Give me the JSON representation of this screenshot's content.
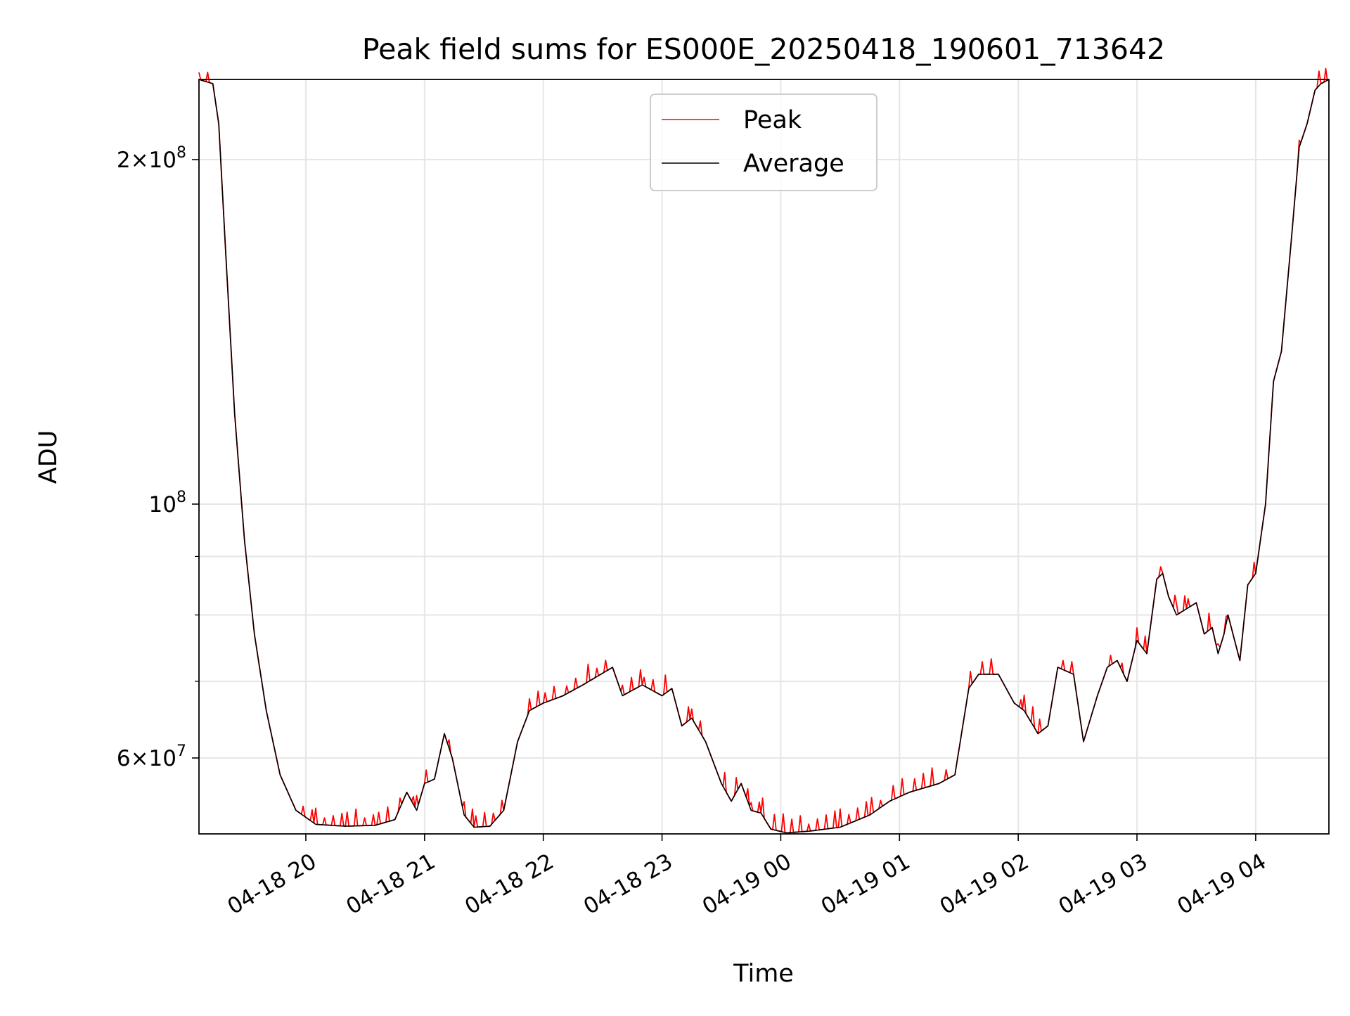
{
  "chart_data": {
    "type": "line",
    "title": "Peak field sums for ES000E_20250418_190601_713642",
    "xlabel": "Time",
    "ylabel": "ADU",
    "yscale": "log",
    "ylim": [
      51500000,
      235000000
    ],
    "xlim": [
      "2025-04-18 19:06",
      "2025-04-19 04:37"
    ],
    "x_ticks": [
      {
        "value": "2025-04-18 20:00",
        "label": "04-18 20"
      },
      {
        "value": "2025-04-18 21:00",
        "label": "04-18 21"
      },
      {
        "value": "2025-04-18 22:00",
        "label": "04-18 22"
      },
      {
        "value": "2025-04-18 23:00",
        "label": "04-18 23"
      },
      {
        "value": "2025-04-19 00:00",
        "label": "04-19 00"
      },
      {
        "value": "2025-04-19 01:00",
        "label": "04-19 01"
      },
      {
        "value": "2025-04-19 02:00",
        "label": "04-19 02"
      },
      {
        "value": "2025-04-19 03:00",
        "label": "04-19 03"
      },
      {
        "value": "2025-04-19 04:00",
        "label": "04-19 04"
      }
    ],
    "y_ticks_major": [
      {
        "value": 60000000,
        "mantissa": "6",
        "exponent": "7"
      },
      {
        "value": 100000000,
        "mantissa": "",
        "exponent": "8"
      },
      {
        "value": 200000000,
        "mantissa": "2",
        "exponent": "8"
      }
    ],
    "y_ticks_minor": [
      70000000,
      80000000,
      90000000
    ],
    "grid": true,
    "legend_position": "top-center",
    "series": [
      {
        "name": "Peak",
        "color": "#ff0000",
        "spiky": true,
        "x": [
          "2025-04-18 19:06",
          "2025-04-18 19:13",
          "2025-04-18 19:16",
          "2025-04-18 19:20",
          "2025-04-18 19:24",
          "2025-04-18 19:29",
          "2025-04-18 19:34",
          "2025-04-18 19:40",
          "2025-04-18 19:47",
          "2025-04-18 19:55",
          "2025-04-18 20:05",
          "2025-04-18 20:20",
          "2025-04-18 20:35",
          "2025-04-18 20:45",
          "2025-04-18 20:51",
          "2025-04-18 20:56",
          "2025-04-18 21:00",
          "2025-04-18 21:05",
          "2025-04-18 21:10",
          "2025-04-18 21:14",
          "2025-04-18 21:20",
          "2025-04-18 21:25",
          "2025-04-18 21:33",
          "2025-04-18 21:40",
          "2025-04-18 21:47",
          "2025-04-18 21:53",
          "2025-04-18 22:00",
          "2025-04-18 22:10",
          "2025-04-18 22:20",
          "2025-04-18 22:35",
          "2025-04-18 22:40",
          "2025-04-18 22:50",
          "2025-04-18 23:00",
          "2025-04-18 23:05",
          "2025-04-18 23:10",
          "2025-04-18 23:15",
          "2025-04-18 23:22",
          "2025-04-18 23:30",
          "2025-04-18 23:35",
          "2025-04-18 23:40",
          "2025-04-18 23:45",
          "2025-04-18 23:50",
          "2025-04-18 23:55",
          "2025-04-19 00:03",
          "2025-04-19 00:15",
          "2025-04-19 00:30",
          "2025-04-19 00:45",
          "2025-04-19 00:55",
          "2025-04-19 01:05",
          "2025-04-19 01:20",
          "2025-04-19 01:28",
          "2025-04-19 01:35",
          "2025-04-19 01:40",
          "2025-04-19 01:50",
          "2025-04-19 01:58",
          "2025-04-19 02:03",
          "2025-04-19 02:10",
          "2025-04-19 02:15",
          "2025-04-19 02:20",
          "2025-04-19 02:28",
          "2025-04-19 02:33",
          "2025-04-19 02:40",
          "2025-04-19 02:45",
          "2025-04-19 02:50",
          "2025-04-19 02:55",
          "2025-04-19 03:00",
          "2025-04-19 03:05",
          "2025-04-19 03:10",
          "2025-04-19 03:13",
          "2025-04-19 03:16",
          "2025-04-19 03:20",
          "2025-04-19 03:25",
          "2025-04-19 03:30",
          "2025-04-19 03:34",
          "2025-04-19 03:38",
          "2025-04-19 03:41",
          "2025-04-19 03:44",
          "2025-04-19 03:46",
          "2025-04-19 03:52",
          "2025-04-19 03:56",
          "2025-04-19 04:00",
          "2025-04-19 04:05",
          "2025-04-19 04:09",
          "2025-04-19 04:13",
          "2025-04-19 04:18",
          "2025-04-19 04:22",
          "2025-04-19 04:26",
          "2025-04-19 04:30",
          "2025-04-19 04:33",
          "2025-04-19 04:37"
        ],
        "y": [
          235000000,
          233000000,
          215000000,
          160000000,
          120000000,
          93000000,
          77000000,
          66000000,
          58000000,
          54000000,
          52500000,
          52300000,
          52400000,
          53000000,
          56000000,
          54000000,
          57000000,
          57500000,
          63000000,
          60000000,
          53500000,
          52200000,
          52300000,
          54000000,
          62000000,
          66000000,
          67000000,
          68000000,
          69500000,
          72000000,
          68000000,
          69500000,
          68000000,
          69000000,
          64000000,
          65000000,
          62000000,
          57000000,
          55000000,
          57000000,
          54000000,
          53700000,
          52000000,
          51600000,
          51800000,
          52200000,
          53500000,
          55000000,
          56000000,
          57000000,
          58000000,
          69000000,
          71000000,
          71000000,
          67000000,
          66000000,
          63000000,
          64000000,
          72000000,
          71000000,
          62000000,
          68000000,
          72000000,
          73000000,
          70000000,
          76000000,
          74000000,
          86000000,
          87000000,
          83000000,
          80000000,
          81000000,
          82000000,
          77000000,
          78000000,
          74000000,
          77000000,
          80000000,
          73000000,
          85000000,
          87000000,
          100000000,
          128000000,
          136000000,
          170000000,
          205000000,
          215000000,
          230000000,
          233000000,
          235000000
        ]
      },
      {
        "name": "Average",
        "color": "#000000",
        "spiky": false,
        "x": [
          "2025-04-18 19:06",
          "2025-04-18 19:13",
          "2025-04-18 19:16",
          "2025-04-18 19:20",
          "2025-04-18 19:24",
          "2025-04-18 19:29",
          "2025-04-18 19:34",
          "2025-04-18 19:40",
          "2025-04-18 19:47",
          "2025-04-18 19:55",
          "2025-04-18 20:05",
          "2025-04-18 20:20",
          "2025-04-18 20:35",
          "2025-04-18 20:45",
          "2025-04-18 20:51",
          "2025-04-18 20:56",
          "2025-04-18 21:00",
          "2025-04-18 21:05",
          "2025-04-18 21:10",
          "2025-04-18 21:14",
          "2025-04-18 21:20",
          "2025-04-18 21:25",
          "2025-04-18 21:33",
          "2025-04-18 21:40",
          "2025-04-18 21:47",
          "2025-04-18 21:53",
          "2025-04-18 22:00",
          "2025-04-18 22:10",
          "2025-04-18 22:20",
          "2025-04-18 22:35",
          "2025-04-18 22:40",
          "2025-04-18 22:50",
          "2025-04-18 23:00",
          "2025-04-18 23:05",
          "2025-04-18 23:10",
          "2025-04-18 23:15",
          "2025-04-18 23:22",
          "2025-04-18 23:30",
          "2025-04-18 23:35",
          "2025-04-18 23:40",
          "2025-04-18 23:45",
          "2025-04-18 23:50",
          "2025-04-18 23:55",
          "2025-04-19 00:03",
          "2025-04-19 00:15",
          "2025-04-19 00:30",
          "2025-04-19 00:45",
          "2025-04-19 00:55",
          "2025-04-19 01:05",
          "2025-04-19 01:20",
          "2025-04-19 01:28",
          "2025-04-19 01:35",
          "2025-04-19 01:40",
          "2025-04-19 01:50",
          "2025-04-19 01:58",
          "2025-04-19 02:03",
          "2025-04-19 02:10",
          "2025-04-19 02:15",
          "2025-04-19 02:20",
          "2025-04-19 02:28",
          "2025-04-19 02:33",
          "2025-04-19 02:40",
          "2025-04-19 02:45",
          "2025-04-19 02:50",
          "2025-04-19 02:55",
          "2025-04-19 03:00",
          "2025-04-19 03:05",
          "2025-04-19 03:10",
          "2025-04-19 03:13",
          "2025-04-19 03:16",
          "2025-04-19 03:20",
          "2025-04-19 03:25",
          "2025-04-19 03:30",
          "2025-04-19 03:34",
          "2025-04-19 03:38",
          "2025-04-19 03:41",
          "2025-04-19 03:44",
          "2025-04-19 03:46",
          "2025-04-19 03:52",
          "2025-04-19 03:56",
          "2025-04-19 04:00",
          "2025-04-19 04:05",
          "2025-04-19 04:09",
          "2025-04-19 04:13",
          "2025-04-19 04:18",
          "2025-04-19 04:22",
          "2025-04-19 04:26",
          "2025-04-19 04:30",
          "2025-04-19 04:33",
          "2025-04-19 04:37"
        ],
        "y": [
          235000000,
          233000000,
          215000000,
          160000000,
          120000000,
          93000000,
          77000000,
          66000000,
          58000000,
          54000000,
          52500000,
          52300000,
          52400000,
          53000000,
          56000000,
          54000000,
          57000000,
          57500000,
          63000000,
          60000000,
          53500000,
          52200000,
          52300000,
          54000000,
          62000000,
          66000000,
          67000000,
          68000000,
          69500000,
          72000000,
          68000000,
          69500000,
          68000000,
          69000000,
          64000000,
          65000000,
          62000000,
          57000000,
          55000000,
          57000000,
          54000000,
          53700000,
          52000000,
          51600000,
          51800000,
          52200000,
          53500000,
          55000000,
          56000000,
          57000000,
          58000000,
          69000000,
          71000000,
          71000000,
          67000000,
          66000000,
          63000000,
          64000000,
          72000000,
          71000000,
          62000000,
          68000000,
          72000000,
          73000000,
          70000000,
          76000000,
          74000000,
          86000000,
          87000000,
          83000000,
          80000000,
          81000000,
          82000000,
          77000000,
          78000000,
          74000000,
          77000000,
          80000000,
          73000000,
          85000000,
          87000000,
          100000000,
          128000000,
          136000000,
          170000000,
          205000000,
          215000000,
          230000000,
          233000000,
          235000000
        ]
      }
    ]
  }
}
